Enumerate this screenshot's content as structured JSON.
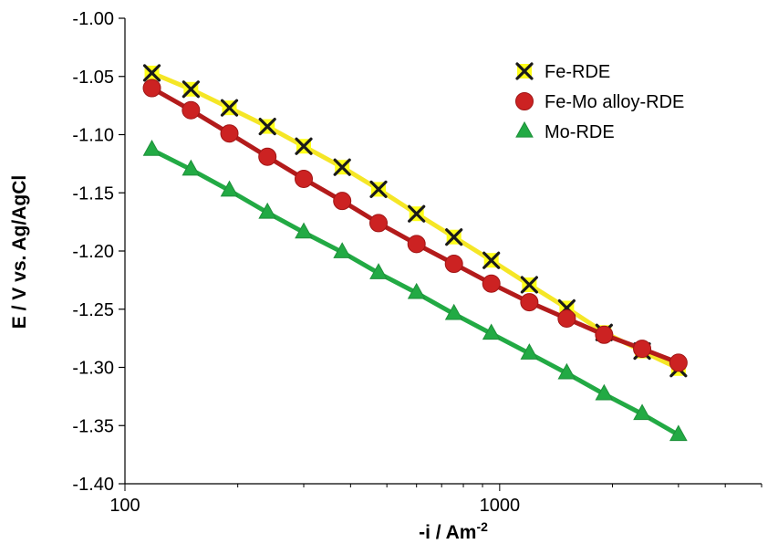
{
  "chart_data": {
    "type": "line",
    "title": "",
    "xlabel": "-i / Am",
    "xlabel_superscript": "-2",
    "ylabel": "E / V vs. Ag/AgCl",
    "xscale": "log",
    "xlim": [
      100,
      5000
    ],
    "ylim": [
      -1.4,
      -1.0
    ],
    "x_ticks": [
      100,
      1000
    ],
    "x_tick_labels": [
      "100",
      "1000"
    ],
    "y_ticks": [
      -1.0,
      -1.05,
      -1.1,
      -1.15,
      -1.2,
      -1.25,
      -1.3,
      -1.35,
      -1.4
    ],
    "y_tick_labels": [
      "-1.00",
      "-1.05",
      "-1.10",
      "-1.15",
      "-1.20",
      "-1.25",
      "-1.30",
      "-1.35",
      "-1.40"
    ],
    "grid": false,
    "legend_position": "top-right",
    "x": [
      118,
      150,
      190,
      240,
      300,
      380,
      475,
      600,
      755,
      950,
      1200,
      1510,
      1900,
      2400,
      3000
    ],
    "series": [
      {
        "name": "Fe-RDE",
        "marker": "x",
        "line_color": "#f5e626",
        "marker_fill": "#ffff1a",
        "marker_stroke": "#1a1a1a",
        "values": [
          -1.047,
          -1.061,
          -1.077,
          -1.093,
          -1.11,
          -1.128,
          -1.147,
          -1.168,
          -1.188,
          -1.208,
          -1.229,
          -1.249,
          -1.27,
          -1.286,
          -1.301
        ]
      },
      {
        "name": "Fe-Mo alloy-RDE",
        "marker": "circle",
        "line_color": "#b31b1b",
        "marker_fill": "#cc2222",
        "marker_stroke": "#a01515",
        "values": [
          -1.06,
          -1.079,
          -1.099,
          -1.119,
          -1.138,
          -1.157,
          -1.176,
          -1.194,
          -1.211,
          -1.228,
          -1.244,
          -1.258,
          -1.272,
          -1.284,
          -1.296
        ]
      },
      {
        "name": "Mo-RDE",
        "marker": "triangle",
        "line_color": "#22aa44",
        "marker_fill": "#22aa44",
        "marker_stroke": "#1e8f3a",
        "values": [
          -1.113,
          -1.13,
          -1.148,
          -1.167,
          -1.184,
          -1.201,
          -1.219,
          -1.236,
          -1.254,
          -1.271,
          -1.288,
          -1.305,
          -1.323,
          -1.34,
          -1.358
        ]
      }
    ]
  }
}
